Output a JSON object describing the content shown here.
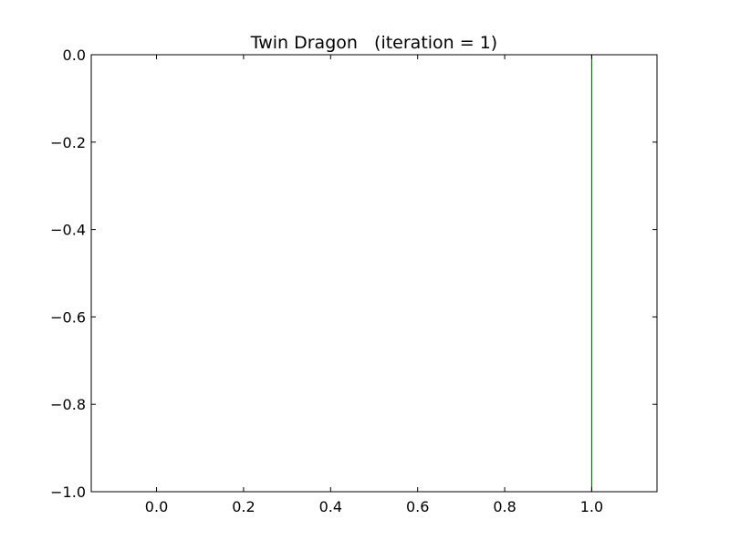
{
  "chart_data": {
    "type": "line",
    "title": "Twin Dragon   (iteration = 1)",
    "xlabel": "",
    "ylabel": "",
    "xlim": [
      -0.15,
      1.15
    ],
    "ylim": [
      -1.0,
      0.0
    ],
    "grid": false,
    "x_ticks": [
      0.0,
      0.2,
      0.4,
      0.6,
      0.8,
      1.0
    ],
    "x_tick_labels": [
      "0.0",
      "0.2",
      "0.4",
      "0.6",
      "0.8",
      "1.0"
    ],
    "y_ticks": [
      0.0,
      -0.2,
      -0.4,
      -0.6,
      -0.8,
      -1.0
    ],
    "y_tick_labels": [
      "0.0",
      "−0.2",
      "−0.4",
      "−0.6",
      "−0.8",
      "−1.0"
    ],
    "series": [
      {
        "color": "#008000",
        "x": [
          1.0,
          1.0
        ],
        "y": [
          0.0,
          -1.0
        ]
      }
    ]
  }
}
